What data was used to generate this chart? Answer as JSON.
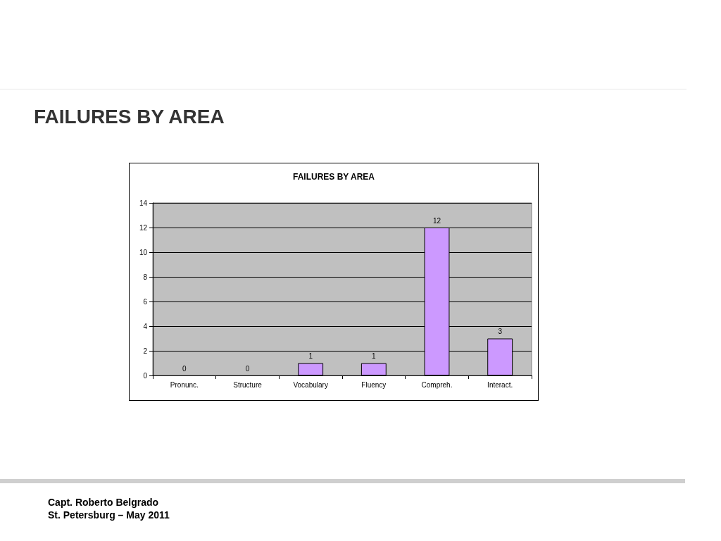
{
  "chart_data": {
    "type": "bar",
    "title": "FAILURES BY AREA",
    "subtitle": "FAILURES BY AREA",
    "categories": [
      "Pronunc.",
      "Structure",
      "Vocabulary",
      "Fluency",
      "Compreh.",
      "Interact."
    ],
    "values": [
      0,
      0,
      1,
      1,
      12,
      3
    ],
    "color": "#cc99ff",
    "ylim": [
      0,
      14
    ],
    "yticks": [
      0,
      2,
      4,
      6,
      8,
      10,
      12,
      14
    ],
    "grid": "y",
    "data_labels": true,
    "annotations": [
      "Capt. Roberto Belgrado",
      "St. Petersburg – May 2011"
    ]
  }
}
